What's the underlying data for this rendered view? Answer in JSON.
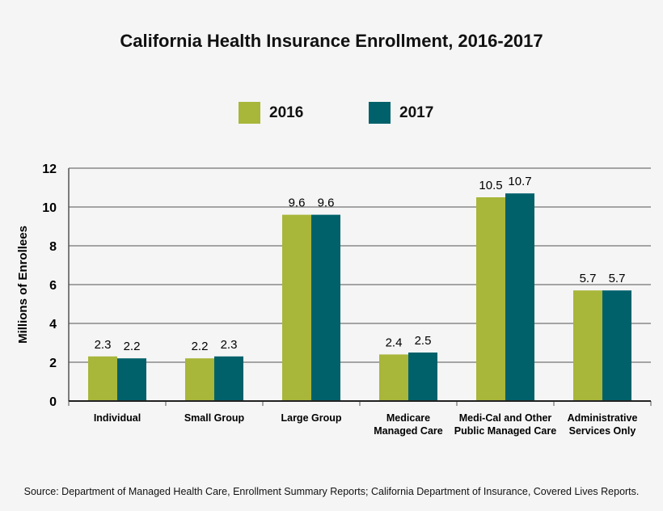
{
  "chart_data": {
    "type": "bar",
    "title": "California Health Insurance Enrollment, 2016-2017",
    "xlabel": "",
    "ylabel": "Millions of Enrollees",
    "ylim": [
      0,
      12
    ],
    "yticks": [
      0,
      2,
      4,
      6,
      8,
      10,
      12
    ],
    "grid": true,
    "legend_position": "top-center",
    "categories": [
      [
        "Individual"
      ],
      [
        "Small Group"
      ],
      [
        "Large Group"
      ],
      [
        "Medicare",
        "Managed Care"
      ],
      [
        "Medi-Cal and Other",
        "Public Managed Care"
      ],
      [
        "Administrative",
        "Services Only"
      ]
    ],
    "series": [
      {
        "name": "2016",
        "color": "#a8b63a",
        "values": [
          2.3,
          2.2,
          9.6,
          2.4,
          10.5,
          5.7
        ]
      },
      {
        "name": "2017",
        "color": "#00616b",
        "values": [
          2.2,
          2.3,
          9.6,
          2.5,
          10.7,
          5.7
        ]
      }
    ]
  },
  "source": "Source:  Department of Managed Health Care, Enrollment Summary Reports; California Department of Insurance, Covered Lives Reports."
}
